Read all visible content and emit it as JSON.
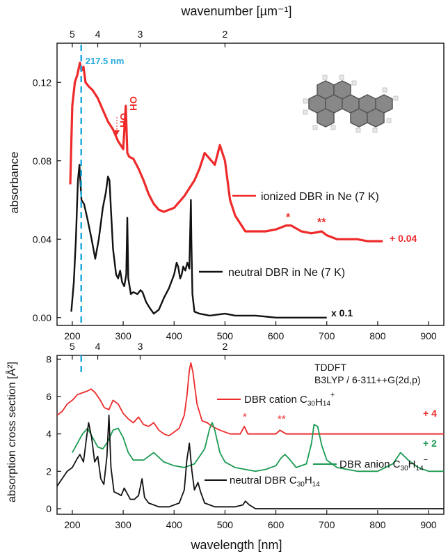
{
  "figure": {
    "top_axis_title": "wavenumber [µm⁻¹]",
    "top_axis_ticks": [
      "5",
      "4",
      "3",
      "2"
    ],
    "top_axis_tick_wavelengths": [
      200,
      250,
      333.3,
      500
    ],
    "bottom_axis_title": "wavelength [nm]",
    "colors": {
      "ionized": "#ee2a2a",
      "neutral": "#111111",
      "anion": "#1a9a52",
      "marker": "#22aadd"
    }
  },
  "chart_data": [
    {
      "type": "line",
      "panel": "top",
      "xlabel": "",
      "ylabel": "absorbance",
      "xlim": [
        170,
        930
      ],
      "ylim": [
        -0.004,
        0.14
      ],
      "xticks": [
        200,
        300,
        400,
        500,
        600,
        700,
        800,
        900
      ],
      "yticks": [
        0.0,
        0.04,
        0.08,
        0.12
      ],
      "ytick_labels": [
        "0.00",
        "0.04",
        "0.08",
        "0.12"
      ],
      "marker_line": {
        "x": 217.5,
        "label": "217.5 nm"
      },
      "annotations": [
        {
          "text": "OH",
          "x": 286,
          "y": 0.11
        },
        {
          "text": "OH",
          "x": 306,
          "y": 0.11
        },
        {
          "text": "*",
          "x": 623,
          "y": 0.05
        },
        {
          "text": "**",
          "x": 695,
          "y": 0.046
        }
      ],
      "series": [
        {
          "name": "ionized DBR in Ne (7 K)",
          "offset_label": "+ 0.04",
          "x": [
            196,
            200,
            205,
            210,
            215,
            218,
            222,
            226,
            232,
            240,
            250,
            260,
            270,
            280,
            290,
            300,
            305,
            308,
            312,
            320,
            330,
            340,
            350,
            360,
            370,
            380,
            400,
            420,
            440,
            450,
            460,
            470,
            480,
            490,
            500,
            510,
            520,
            530,
            540,
            560,
            580,
            600,
            620,
            630,
            650,
            670,
            690,
            700,
            720,
            740,
            760,
            780,
            800,
            810
          ],
          "y": [
            0.068,
            0.108,
            0.12,
            0.124,
            0.13,
            0.126,
            0.128,
            0.12,
            0.118,
            0.116,
            0.112,
            0.106,
            0.1,
            0.096,
            0.09,
            0.086,
            0.108,
            0.084,
            0.082,
            0.081,
            0.076,
            0.07,
            0.063,
            0.058,
            0.055,
            0.054,
            0.056,
            0.062,
            0.07,
            0.076,
            0.084,
            0.081,
            0.078,
            0.088,
            0.08,
            0.06,
            0.052,
            0.048,
            0.044,
            0.044,
            0.044,
            0.045,
            0.047,
            0.047,
            0.044,
            0.043,
            0.044,
            0.042,
            0.04,
            0.04,
            0.04,
            0.039,
            0.039,
            0.039
          ]
        },
        {
          "name": "neutral DBR in Ne (7 K)",
          "offset_label": "x 0.1",
          "x": [
            198,
            203,
            207,
            211,
            214,
            218,
            223,
            230,
            238,
            245,
            252,
            260,
            266,
            270,
            273,
            276,
            280,
            286,
            290,
            294,
            298,
            302,
            306,
            308,
            310,
            315,
            320,
            328,
            334,
            338,
            345,
            352,
            360,
            370,
            380,
            390,
            400,
            405,
            408,
            412,
            415,
            418,
            422,
            426,
            430,
            433,
            434,
            436,
            440,
            450,
            470,
            500,
            520,
            540,
            560,
            600,
            650,
            700
          ],
          "y": [
            0.003,
            0.018,
            0.04,
            0.07,
            0.078,
            0.06,
            0.058,
            0.05,
            0.04,
            0.03,
            0.04,
            0.056,
            0.064,
            0.072,
            0.07,
            0.055,
            0.035,
            0.022,
            0.02,
            0.024,
            0.018,
            0.016,
            0.022,
            0.051,
            0.02,
            0.012,
            0.013,
            0.012,
            0.014,
            0.013,
            0.008,
            0.005,
            0.002,
            0.004,
            0.01,
            0.015,
            0.022,
            0.028,
            0.026,
            0.02,
            0.022,
            0.026,
            0.024,
            0.028,
            0.025,
            0.06,
            0.04,
            0.012,
            0.003,
            0.002,
            0.001,
            0.002,
            0.001,
            0.001,
            0.001,
            0.0,
            0.0,
            0.0
          ]
        }
      ]
    },
    {
      "type": "line",
      "panel": "bottom",
      "xlabel": "wavelength [nm]",
      "ylabel": "absorption cross section [Å²]",
      "xlim": [
        170,
        930
      ],
      "ylim": [
        -0.3,
        8.2
      ],
      "xticks": [
        200,
        300,
        400,
        500,
        600,
        700,
        800,
        900
      ],
      "yticks": [
        0,
        2,
        4,
        6,
        8
      ],
      "method": [
        "TDDFT",
        "B3LYP / 6-311++G(2d,p)"
      ],
      "annotations": [
        {
          "text": "*",
          "x": 538,
          "y": 4.5
        },
        {
          "text": "**",
          "x": 608,
          "y": 4.3
        }
      ],
      "series": [
        {
          "name": "DBR cation C30H14+",
          "offset_label": "+ 4",
          "x": [
            170,
            180,
            190,
            200,
            210,
            220,
            230,
            237,
            245,
            255,
            263,
            272,
            280,
            290,
            300,
            310,
            320,
            330,
            340,
            350,
            360,
            370,
            380,
            390,
            400,
            410,
            420,
            425,
            430,
            433,
            437,
            445,
            455,
            465,
            475,
            490,
            510,
            530,
            538,
            545,
            560,
            580,
            600,
            608,
            620,
            650,
            700,
            800,
            930
          ],
          "y": [
            5.0,
            5.2,
            5.6,
            5.8,
            6.1,
            6.2,
            6.3,
            6.4,
            6.2,
            5.8,
            5.4,
            5.3,
            5.8,
            5.6,
            5.1,
            4.8,
            4.6,
            4.9,
            4.5,
            4.4,
            4.6,
            4.2,
            4.0,
            3.9,
            4.1,
            4.3,
            5.0,
            6.0,
            7.4,
            7.8,
            7.3,
            5.6,
            4.7,
            4.6,
            4.4,
            4.2,
            4.0,
            4.0,
            4.4,
            4.0,
            4.0,
            4.0,
            4.0,
            4.2,
            4.0,
            4.0,
            4.0,
            4.0,
            4.0
          ]
        },
        {
          "name": "DBR anion C30H14−",
          "offset_label": "+ 2",
          "x": [
            200,
            210,
            220,
            230,
            240,
            250,
            260,
            270,
            280,
            290,
            300,
            310,
            320,
            340,
            360,
            380,
            400,
            420,
            440,
            460,
            470,
            475,
            480,
            490,
            500,
            520,
            540,
            560,
            580,
            600,
            610,
            618,
            625,
            640,
            660,
            670,
            675,
            682,
            690,
            700,
            720,
            760,
            800,
            830,
            845,
            860,
            880,
            900,
            930
          ],
          "y": [
            3.0,
            3.5,
            4.0,
            4.3,
            3.8,
            3.3,
            3.2,
            3.6,
            4.2,
            4.3,
            3.8,
            3.0,
            2.6,
            2.6,
            3.0,
            2.5,
            2.3,
            2.2,
            2.4,
            3.2,
            4.3,
            4.6,
            4.2,
            3.0,
            2.5,
            2.2,
            2.1,
            2.0,
            2.1,
            2.3,
            2.7,
            2.9,
            2.7,
            2.2,
            2.4,
            3.5,
            4.5,
            4.4,
            3.4,
            2.6,
            2.2,
            2.0,
            2.0,
            2.4,
            3.0,
            2.6,
            2.2,
            2.0,
            2.0
          ]
        },
        {
          "name": "neutral DBR C30H14",
          "offset_label": "",
          "x": [
            170,
            180,
            190,
            200,
            210,
            215,
            222,
            228,
            232,
            238,
            244,
            250,
            256,
            262,
            268,
            272,
            276,
            282,
            290,
            296,
            302,
            308,
            314,
            322,
            330,
            337,
            342,
            350,
            370,
            390,
            410,
            420,
            425,
            430,
            435,
            440,
            447,
            452,
            460,
            480,
            500,
            520,
            535,
            540,
            548,
            560,
            600,
            700,
            930
          ],
          "y": [
            1.2,
            1.6,
            2.0,
            2.2,
            2.7,
            2.9,
            2.5,
            3.8,
            4.6,
            3.8,
            2.5,
            2.8,
            1.6,
            1.3,
            2.8,
            5.0,
            2.2,
            0.9,
            0.8,
            0.7,
            1.1,
            0.8,
            0.5,
            0.5,
            0.7,
            1.6,
            0.6,
            0.3,
            0.1,
            0.1,
            0.3,
            1.0,
            2.6,
            3.5,
            2.0,
            1.0,
            1.4,
            0.9,
            0.3,
            0.1,
            0.1,
            0.1,
            0.2,
            0.4,
            0.2,
            0.0,
            0.0,
            0.0,
            0.0
          ]
        }
      ]
    }
  ]
}
